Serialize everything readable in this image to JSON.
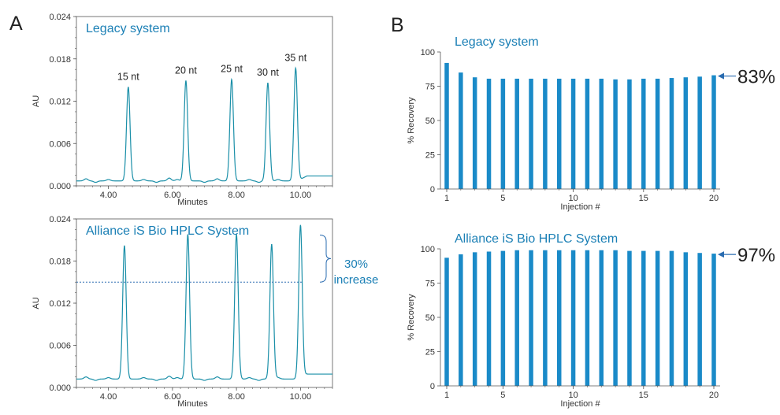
{
  "panels": {
    "a": "A",
    "b": "B"
  },
  "chart_data": [
    {
      "id": "chrom_legacy",
      "type": "line",
      "title": "Legacy system",
      "xlabel": "Minutes",
      "ylabel": "AU",
      "xlim": [
        3.0,
        11.0
      ],
      "ylim": [
        0.0,
        0.024
      ],
      "xticks": [
        "4.00",
        "6.00",
        "8.00",
        "10.00"
      ],
      "xtick_values": [
        4,
        6,
        8,
        10
      ],
      "yticks": [
        "0.000",
        "0.006",
        "0.012",
        "0.018",
        "0.024"
      ],
      "ytick_values": [
        0,
        0.006,
        0.012,
        0.018,
        0.024
      ],
      "grid": false,
      "baseline": 0.0007,
      "peaks": [
        {
          "label": "15 nt",
          "x": 4.62,
          "height": 0.0133
        },
        {
          "label": "20 nt",
          "x": 6.42,
          "height": 0.0142
        },
        {
          "label": "25 nt",
          "x": 7.85,
          "height": 0.0144
        },
        {
          "label": "30 nt",
          "x": 8.98,
          "height": 0.0139
        },
        {
          "label": "35 nt",
          "x": 9.85,
          "height": 0.016
        }
      ]
    },
    {
      "id": "chrom_alliance",
      "type": "line",
      "title": "Alliance iS Bio HPLC System",
      "xlabel": "Minutes",
      "ylabel": "AU",
      "xlim": [
        3.0,
        11.0
      ],
      "ylim": [
        0.0,
        0.024
      ],
      "xticks": [
        "4.00",
        "6.00",
        "8.00",
        "10.00"
      ],
      "xtick_values": [
        4,
        6,
        8,
        10
      ],
      "yticks": [
        "0.000",
        "0.006",
        "0.012",
        "0.018",
        "0.024"
      ],
      "ytick_values": [
        0,
        0.006,
        0.012,
        0.018,
        0.024
      ],
      "grid": false,
      "baseline": 0.0012,
      "reference_line": 0.015,
      "annotation": {
        "line1": "30%",
        "line2": "increase"
      },
      "peaks": [
        {
          "x": 4.5,
          "height": 0.019
        },
        {
          "x": 6.48,
          "height": 0.0206
        },
        {
          "x": 8.0,
          "height": 0.0206
        },
        {
          "x": 9.1,
          "height": 0.0192
        },
        {
          "x": 10.0,
          "height": 0.0217
        }
      ]
    },
    {
      "id": "recovery_legacy",
      "type": "bar",
      "title": "Legacy system",
      "xlabel": "Injection #",
      "ylabel": "% Recovery",
      "ylim": [
        0,
        100
      ],
      "yticks": [
        "0",
        "25",
        "50",
        "75",
        "100"
      ],
      "ytick_values": [
        0,
        25,
        50,
        75,
        100
      ],
      "xticks": [
        "1",
        "5",
        "10",
        "15",
        "20"
      ],
      "xtick_values": [
        1,
        5,
        10,
        15,
        20
      ],
      "categories": [
        1,
        2,
        3,
        4,
        5,
        6,
        7,
        8,
        9,
        10,
        11,
        12,
        13,
        14,
        15,
        16,
        17,
        18,
        19,
        20
      ],
      "values": [
        92,
        85,
        81.5,
        80.5,
        80.5,
        80.5,
        80.5,
        80.5,
        80.5,
        80.5,
        80.5,
        80.5,
        80,
        80,
        80.5,
        80.5,
        81,
        81.5,
        82,
        83
      ],
      "callout": "83%",
      "color": "#1a8ac8"
    },
    {
      "id": "recovery_alliance",
      "type": "bar",
      "title": "Alliance iS Bio HPLC System",
      "xlabel": "Injection #",
      "ylabel": "% Recovery",
      "ylim": [
        0,
        100
      ],
      "yticks": [
        "0",
        "25",
        "50",
        "75",
        "100"
      ],
      "ytick_values": [
        0,
        25,
        50,
        75,
        100
      ],
      "xticks": [
        "1",
        "5",
        "10",
        "15",
        "20"
      ],
      "xtick_values": [
        1,
        5,
        10,
        15,
        20
      ],
      "categories": [
        1,
        2,
        3,
        4,
        5,
        6,
        7,
        8,
        9,
        10,
        11,
        12,
        13,
        14,
        15,
        16,
        17,
        18,
        19,
        20
      ],
      "values": [
        93.5,
        96,
        97.5,
        98,
        98.5,
        99,
        99,
        99,
        99,
        99,
        99,
        99,
        99,
        98.5,
        98.5,
        98.5,
        98.5,
        97.5,
        97,
        96.5
      ],
      "callout": "97%",
      "color": "#1a8ac8"
    }
  ]
}
